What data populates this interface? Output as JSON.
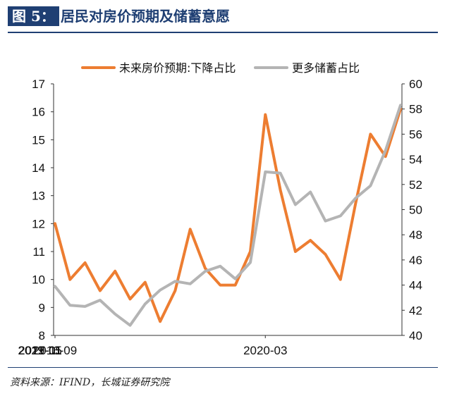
{
  "header": {
    "figure_label": "图 5：",
    "title": "居民对房价预期及储蓄意愿"
  },
  "source": "资料来源：IFIND，长城证券研究院",
  "chart_data": {
    "type": "line",
    "legend_position": "top",
    "grid": false,
    "x_tick_labels": [
      "2016-09",
      "2017-11",
      "2019-01",
      "2020-03",
      "2021-05"
    ],
    "x": [
      "2016-09",
      "2016-12",
      "2017-03",
      "2017-06",
      "2017-09",
      "2017-12",
      "2018-03",
      "2018-06",
      "2018-09",
      "2018-12",
      "2019-03",
      "2019-06",
      "2019-09",
      "2019-12",
      "2020-03",
      "2020-06",
      "2020-09",
      "2020-12",
      "2021-03",
      "2021-06",
      "2021-09",
      "2021-12",
      "2022-03",
      "2022-06"
    ],
    "left_axis": {
      "ylim": [
        8,
        17
      ],
      "ticks": [
        8,
        9,
        10,
        11,
        12,
        13,
        14,
        15,
        16,
        17
      ]
    },
    "right_axis": {
      "ylim": [
        40,
        60
      ],
      "ticks": [
        40,
        42,
        44,
        46,
        48,
        50,
        52,
        54,
        56,
        58,
        60
      ]
    },
    "series": [
      {
        "name": "未来房价预期:下降占比",
        "axis": "left",
        "color": "#ed7d31",
        "values": [
          12.0,
          10.0,
          10.6,
          9.6,
          10.3,
          9.3,
          9.9,
          8.5,
          9.6,
          11.8,
          10.4,
          9.8,
          9.8,
          11.0,
          15.9,
          13.2,
          11.0,
          11.4,
          10.9,
          10.0,
          12.7,
          15.2,
          14.4,
          16.1
        ]
      },
      {
        "name": "更多储蓄占比",
        "axis": "right",
        "color": "#b4b4b4",
        "values": [
          43.9,
          42.4,
          42.3,
          42.8,
          41.7,
          40.8,
          42.5,
          43.6,
          44.3,
          44.1,
          45.1,
          45.5,
          44.5,
          45.8,
          53.0,
          52.9,
          50.4,
          51.4,
          49.1,
          49.5,
          50.9,
          51.9,
          54.7,
          58.3
        ]
      }
    ]
  }
}
